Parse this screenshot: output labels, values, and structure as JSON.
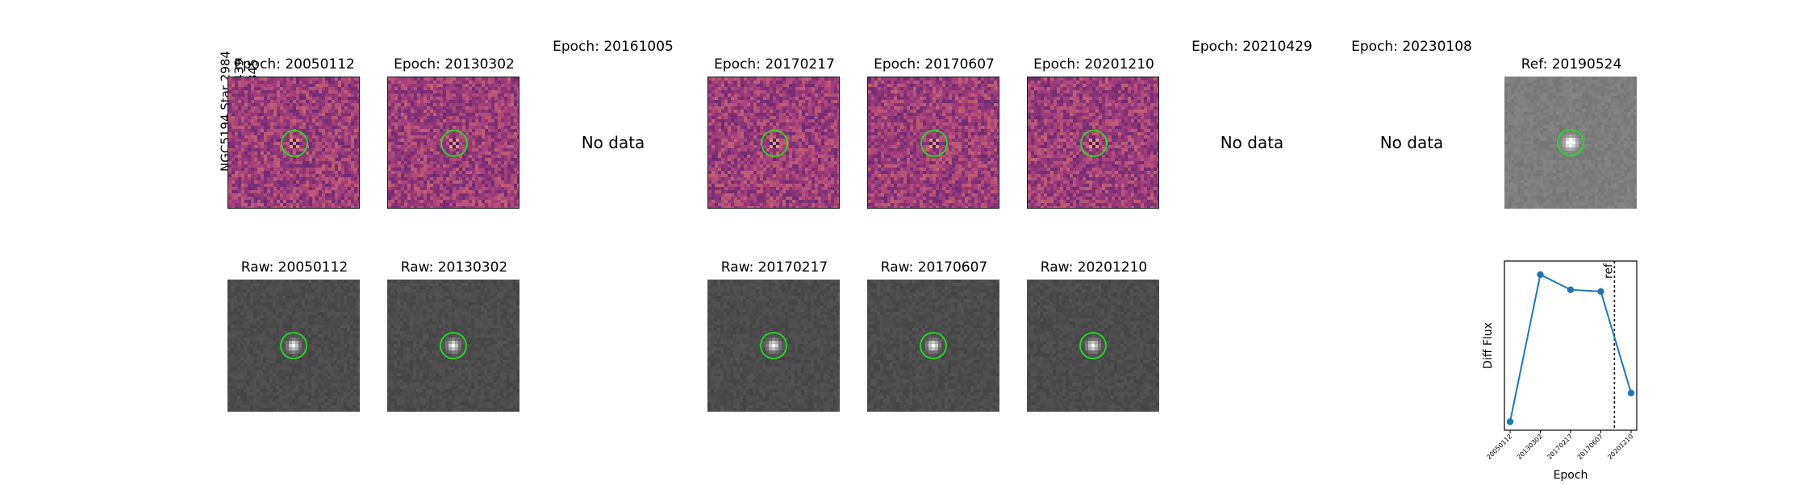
{
  "star_info": {
    "line1": "NGC5194 Star 2984",
    "line2": "RA: 202.5016439",
    "line3": "Dec: 47.1516345"
  },
  "epochs": [
    {
      "title": "Epoch: 20050112",
      "raw_title": "Raw: 20050112",
      "has_data": true
    },
    {
      "title": "Epoch: 20130302",
      "raw_title": "Raw: 20130302",
      "has_data": true
    },
    {
      "title": "Epoch: 20161005",
      "no_data_text": "No data",
      "has_data": false
    },
    {
      "title": "Epoch: 20170217",
      "raw_title": "Raw: 20170217",
      "has_data": true
    },
    {
      "title": "Epoch: 20170607",
      "raw_title": "Raw: 20170607",
      "has_data": true
    },
    {
      "title": "Epoch: 20201210",
      "raw_title": "Raw: 20201210",
      "has_data": true
    },
    {
      "title": "Epoch: 20210429",
      "no_data_text": "No data",
      "has_data": false
    },
    {
      "title": "Epoch: 20230108",
      "no_data_text": "No data",
      "has_data": false
    }
  ],
  "reference": {
    "title": "Ref: 20190524"
  },
  "colors": {
    "marker_circle": "#22dd22",
    "line": "#1f77b4",
    "diff_low": "#3b1a6e",
    "diff_mid": "#a8407a",
    "diff_high": "#f1a060"
  },
  "chart_data": {
    "type": "line",
    "categories": [
      "20050112",
      "20130302",
      "20170217",
      "20170607",
      "20201210"
    ],
    "series": [
      {
        "values": [
          0.05,
          0.92,
          0.83,
          0.82,
          0.22
        ]
      }
    ],
    "xlabel": "Epoch",
    "ylabel": "Diff Flux",
    "ylim": [
      0,
      1
    ],
    "ref_marker": {
      "label": "ref",
      "position_between": [
        "20170607",
        "20201210"
      ]
    },
    "grid": false
  }
}
